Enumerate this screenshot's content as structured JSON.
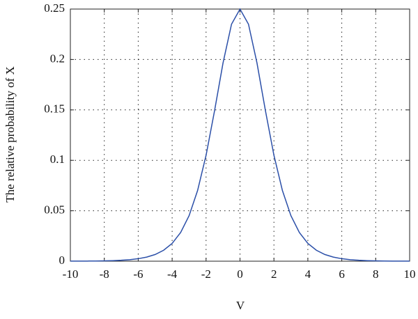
{
  "chart_data": {
    "type": "line",
    "x_label": "V",
    "y_label": "The relative probability of X",
    "x": [
      -10,
      -9.5,
      -9,
      -8.5,
      -8,
      -7.5,
      -7,
      -6.5,
      -6,
      -5.5,
      -5,
      -4.5,
      -4,
      -3.5,
      -3,
      -2.5,
      -2,
      -1.5,
      -1,
      -0.5,
      0,
      0.5,
      1,
      1.5,
      2,
      2.5,
      3,
      3.5,
      4,
      4.5,
      5,
      5.5,
      6,
      6.5,
      7,
      7.5,
      8,
      8.5,
      9,
      9.5,
      10
    ],
    "series": [
      {
        "color": "#2b4fa8",
        "values": [
          4.54e-05,
          7.49e-05,
          0.0001234,
          0.0002034,
          0.0003352,
          0.0005525,
          0.0009102,
          0.0014989,
          0.0024665,
          0.0040536,
          0.0066481,
          0.010866,
          0.017663,
          0.028453,
          0.045177,
          0.070104,
          0.10499,
          0.14915,
          0.19661,
          0.235,
          0.25,
          0.235,
          0.19661,
          0.14915,
          0.10499,
          0.070104,
          0.045177,
          0.028453,
          0.017663,
          0.010866,
          0.0066481,
          0.0040536,
          0.0024665,
          0.0014989,
          0.0009102,
          0.0005525,
          0.0003352,
          0.0002034,
          0.0001234,
          7.49e-05,
          4.54e-05
        ]
      }
    ],
    "xlim": [
      -10,
      10
    ],
    "xticks": [
      -10,
      -8,
      -6,
      -4,
      -2,
      0,
      2,
      4,
      6,
      8,
      10
    ],
    "ylim": [
      0,
      0.25
    ],
    "yticks": [
      0,
      0.05,
      0.1,
      0.15,
      0.2,
      0.25
    ],
    "grid": true
  }
}
